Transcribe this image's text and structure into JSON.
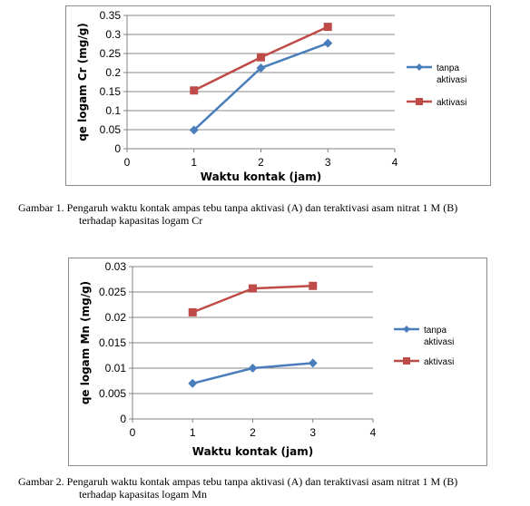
{
  "chart_data": [
    {
      "type": "line",
      "title": "",
      "xlabel": "Waktu kontak (jam)",
      "ylabel": "qe logam Cr (mg/g)",
      "xlim": [
        0,
        4
      ],
      "ylim": [
        0,
        0.35
      ],
      "xticks": [
        "0",
        "1",
        "2",
        "3",
        "4"
      ],
      "yticks": [
        "0",
        "0.05",
        "0.1",
        "0.15",
        "0.2",
        "0.25",
        "0.3",
        "0.35"
      ],
      "grid": true,
      "legend_position": "right",
      "x": [
        1,
        2,
        3
      ],
      "series": [
        {
          "name_lines": [
            "tanpa",
            "aktivasi"
          ],
          "values": [
            0.049,
            0.212,
            0.277
          ],
          "color": "#4a7ebb",
          "marker": "diamond"
        },
        {
          "name_lines": [
            "aktivasi"
          ],
          "values": [
            0.153,
            0.24,
            0.32
          ],
          "color": "#be4b48",
          "marker": "square"
        }
      ]
    },
    {
      "type": "line",
      "title": "",
      "xlabel": "Waktu kontak (jam)",
      "ylabel": "qe logam Mn (mg/g)",
      "xlim": [
        0,
        4
      ],
      "ylim": [
        0,
        0.03
      ],
      "xticks": [
        "0",
        "1",
        "2",
        "3",
        "4"
      ],
      "yticks": [
        "0",
        "0.005",
        "0.01",
        "0.015",
        "0.02",
        "0.025",
        "0.03"
      ],
      "grid": true,
      "legend_position": "right",
      "x": [
        1,
        2,
        3
      ],
      "series": [
        {
          "name_lines": [
            "tanpa",
            "aktivasi"
          ],
          "values": [
            0.007,
            0.01,
            0.011
          ],
          "color": "#4a7ebb",
          "marker": "diamond"
        },
        {
          "name_lines": [
            "aktivasi"
          ],
          "values": [
            0.021,
            0.0257,
            0.0262
          ],
          "color": "#be4b48",
          "marker": "square"
        }
      ]
    }
  ],
  "captions": {
    "fig1_line1": "Gambar 1. Pengaruh waktu kontak ampas tebu tanpa aktivasi (A) dan teraktivasi asam nitrat  1 M (B)",
    "fig1_line2": "terhadap kapasitas logam Cr",
    "fig2_line1": "Gambar 2. Pengaruh waktu kontak ampas tebu tanpa aktivasi (A) dan teraktivasi asam nitrat  1 M (B)",
    "fig2_line2": "terhadap kapasitas logam Mn"
  }
}
